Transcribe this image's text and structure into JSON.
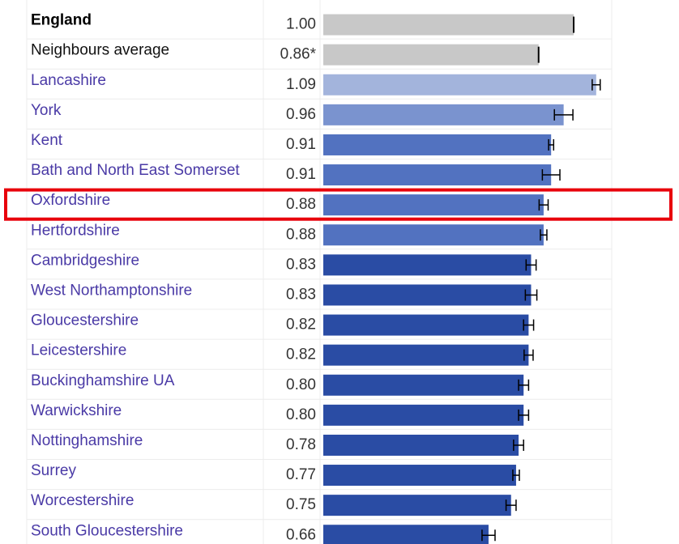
{
  "chart_data": {
    "type": "bar",
    "orientation": "horizontal",
    "categories": [
      "England",
      "Neighbours average",
      "Lancashire",
      "York",
      "Kent",
      "Bath and North East Somerset",
      "Oxfordshire",
      "Hertfordshire",
      "Cambridgeshire",
      "West Northamptonshire",
      "Gloucestershire",
      "Leicestershire",
      "Buckinghamshire UA",
      "Warwickshire",
      "Nottinghamshire",
      "Surrey",
      "Worcestershire",
      "South Gloucestershire"
    ],
    "values": [
      1.0,
      0.86,
      1.09,
      0.96,
      0.91,
      0.91,
      0.88,
      0.88,
      0.83,
      0.83,
      0.82,
      0.82,
      0.8,
      0.8,
      0.78,
      0.77,
      0.75,
      0.66
    ],
    "value_labels": [
      "1.00",
      "0.86*",
      "1.09",
      "0.96",
      "0.91",
      "0.91",
      "0.88",
      "0.88",
      "0.83",
      "0.83",
      "0.82",
      "0.82",
      "0.80",
      "0.80",
      "0.78",
      "0.77",
      "0.75",
      "0.66"
    ],
    "errors": [
      null,
      null,
      0.016,
      0.037,
      0.01,
      0.035,
      0.018,
      0.013,
      0.02,
      0.023,
      0.02,
      0.018,
      0.02,
      0.02,
      0.02,
      0.013,
      0.02,
      0.026
    ],
    "colors": [
      "#c8c8c8",
      "#c8c8c8",
      "#a3b4dc",
      "#7a93cf",
      "#5272c0",
      "#5272c0",
      "#5272c0",
      "#5272c0",
      "#2a4ca4",
      "#2a4ca4",
      "#2a4ca4",
      "#2a4ca4",
      "#2a4ca4",
      "#2a4ca4",
      "#2a4ca4",
      "#2a4ca4",
      "#2a4ca4",
      "#2a4ca4"
    ],
    "label_colors": [
      "#000000",
      "#111111",
      "#4a3aa6",
      "#4a3aa6",
      "#4a3aa6",
      "#4a3aa6",
      "#4a3aa6",
      "#4a3aa6",
      "#4a3aa6",
      "#4a3aa6",
      "#4a3aa6",
      "#4a3aa6",
      "#4a3aa6",
      "#4a3aa6",
      "#4a3aa6",
      "#4a3aa6",
      "#4a3aa6",
      "#4a3aa6"
    ],
    "bold": [
      "England"
    ],
    "xlim": [
      0,
      1.2
    ],
    "highlight": "Oxfordshire",
    "highlight_color": "#e8000b"
  }
}
